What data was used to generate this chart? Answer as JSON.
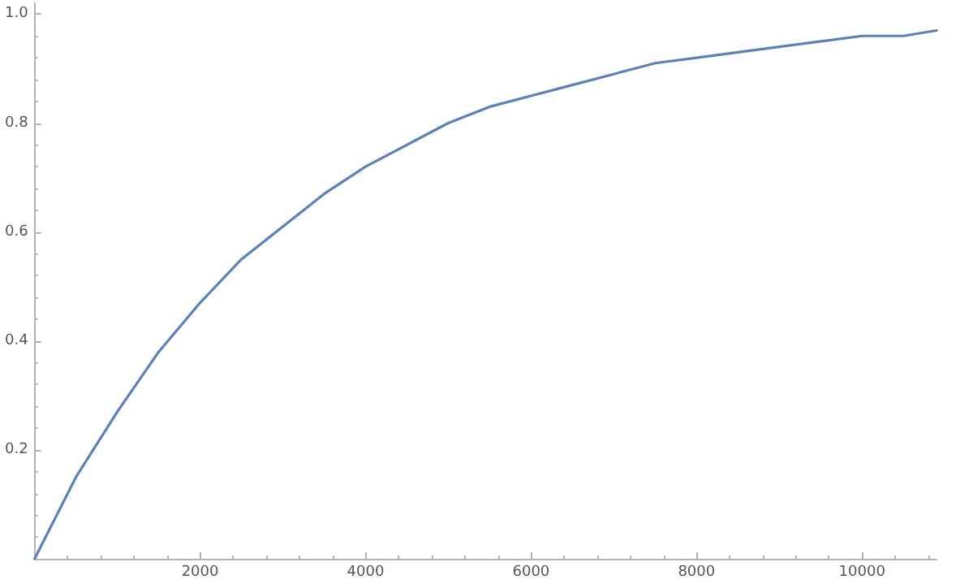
{
  "chart_data": {
    "type": "line",
    "x": [
      0,
      500,
      1000,
      1500,
      2000,
      2500,
      3000,
      3500,
      4000,
      4500,
      5000,
      5500,
      6000,
      6500,
      7000,
      7500,
      8000,
      8500,
      9000,
      9500,
      10000,
      10500,
      10900
    ],
    "series": [
      {
        "color": "#5e81b5",
        "values": [
          0,
          0.15,
          0.27,
          0.38,
          0.47,
          0.55,
          0.61,
          0.67,
          0.72,
          0.76,
          0.8,
          0.83,
          0.85,
          0.87,
          0.89,
          0.91,
          0.92,
          0.93,
          0.94,
          0.95,
          0.96,
          0.96,
          0.97
        ]
      }
    ],
    "xlim": [
      0,
      10900
    ],
    "ylim": [
      0,
      1.02
    ],
    "xticks": [
      2000,
      4000,
      6000,
      8000,
      10000
    ],
    "yticks": [
      0.2,
      0.4,
      0.6,
      0.8,
      {
        "value": 1,
        "label": "1.0"
      }
    ],
    "grid": false,
    "marker": "none",
    "line_style": "solid"
  }
}
